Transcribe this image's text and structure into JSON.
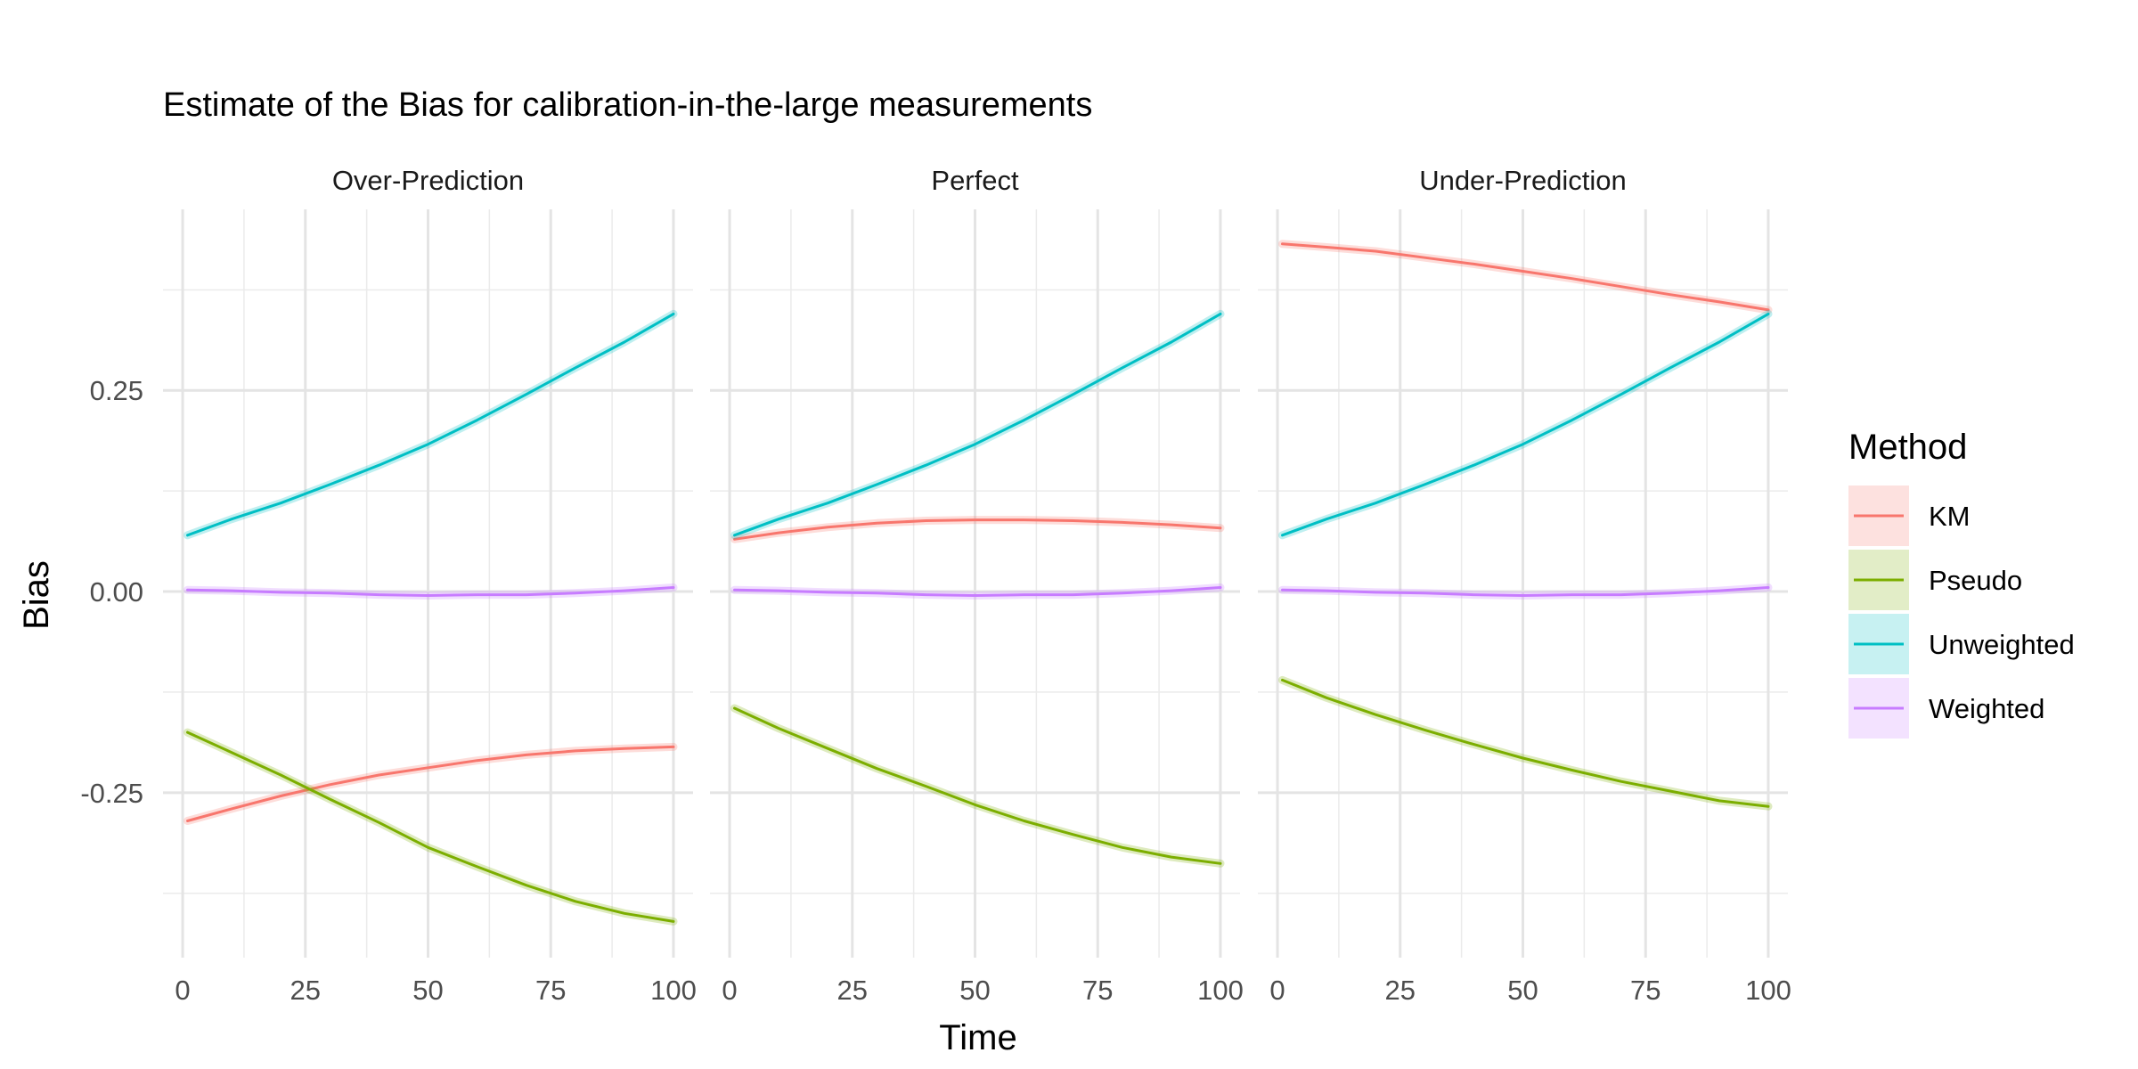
{
  "chart_data": {
    "type": "line",
    "title": "Estimate of the Bias for calibration-in-the-large measurements",
    "xlabel": "Time",
    "ylabel": "Bias",
    "xlim": [
      -4,
      104
    ],
    "ylim": [
      -0.455,
      0.475
    ],
    "x_ticks": [
      0,
      25,
      50,
      75,
      100
    ],
    "x_tick_labels": [
      "0",
      "25",
      "50",
      "75",
      "100"
    ],
    "y_ticks": [
      -0.25,
      0,
      0.25
    ],
    "y_tick_labels": [
      "-0.25",
      "0.00",
      "0.25"
    ],
    "grid": true,
    "legend": {
      "title": "Method",
      "position": "right"
    },
    "series_colors": {
      "KM": "#F8766D",
      "Pseudo": "#7CAE00",
      "Unweighted": "#00BFC4",
      "Weighted": "#C77CFF"
    },
    "x": [
      1,
      10,
      20,
      30,
      40,
      50,
      60,
      70,
      80,
      90,
      100
    ],
    "panels": [
      {
        "name": "Over-Prediction",
        "series": [
          {
            "name": "KM",
            "values": [
              -0.285,
              -0.27,
              -0.254,
              -0.24,
              -0.228,
              -0.219,
              -0.21,
              -0.203,
              -0.198,
              -0.195,
              -0.193
            ]
          },
          {
            "name": "Pseudo",
            "values": [
              -0.175,
              -0.2,
              -0.228,
              -0.258,
              -0.287,
              -0.318,
              -0.342,
              -0.365,
              -0.385,
              -0.4,
              -0.41
            ]
          },
          {
            "name": "Unweighted",
            "values": [
              0.07,
              0.09,
              0.11,
              0.133,
              0.157,
              0.183,
              0.213,
              0.245,
              0.278,
              0.31,
              0.345
            ]
          },
          {
            "name": "Weighted",
            "values": [
              0.002,
              0.001,
              -0.001,
              -0.002,
              -0.004,
              -0.005,
              -0.004,
              -0.004,
              -0.002,
              0.001,
              0.005
            ]
          }
        ]
      },
      {
        "name": "Perfect",
        "series": [
          {
            "name": "KM",
            "values": [
              0.065,
              0.073,
              0.08,
              0.085,
              0.088,
              0.089,
              0.089,
              0.088,
              0.086,
              0.083,
              0.079
            ]
          },
          {
            "name": "Pseudo",
            "values": [
              -0.145,
              -0.17,
              -0.195,
              -0.22,
              -0.242,
              -0.265,
              -0.285,
              -0.302,
              -0.318,
              -0.33,
              -0.338
            ]
          },
          {
            "name": "Unweighted",
            "values": [
              0.07,
              0.09,
              0.11,
              0.133,
              0.157,
              0.183,
              0.213,
              0.245,
              0.278,
              0.31,
              0.345
            ]
          },
          {
            "name": "Weighted",
            "values": [
              0.002,
              0.001,
              -0.001,
              -0.002,
              -0.004,
              -0.005,
              -0.004,
              -0.004,
              -0.002,
              0.001,
              0.005
            ]
          }
        ]
      },
      {
        "name": "Under-Prediction",
        "series": [
          {
            "name": "KM",
            "values": [
              0.432,
              0.428,
              0.423,
              0.415,
              0.407,
              0.398,
              0.389,
              0.379,
              0.369,
              0.36,
              0.35
            ]
          },
          {
            "name": "Pseudo",
            "values": [
              -0.11,
              -0.132,
              -0.153,
              -0.172,
              -0.19,
              -0.207,
              -0.222,
              -0.236,
              -0.248,
              -0.26,
              -0.267
            ]
          },
          {
            "name": "Unweighted",
            "values": [
              0.07,
              0.09,
              0.11,
              0.133,
              0.157,
              0.183,
              0.213,
              0.245,
              0.278,
              0.31,
              0.345
            ]
          },
          {
            "name": "Weighted",
            "values": [
              0.002,
              0.001,
              -0.001,
              -0.002,
              -0.004,
              -0.005,
              -0.004,
              -0.004,
              -0.002,
              0.001,
              0.005
            ]
          }
        ]
      }
    ]
  }
}
